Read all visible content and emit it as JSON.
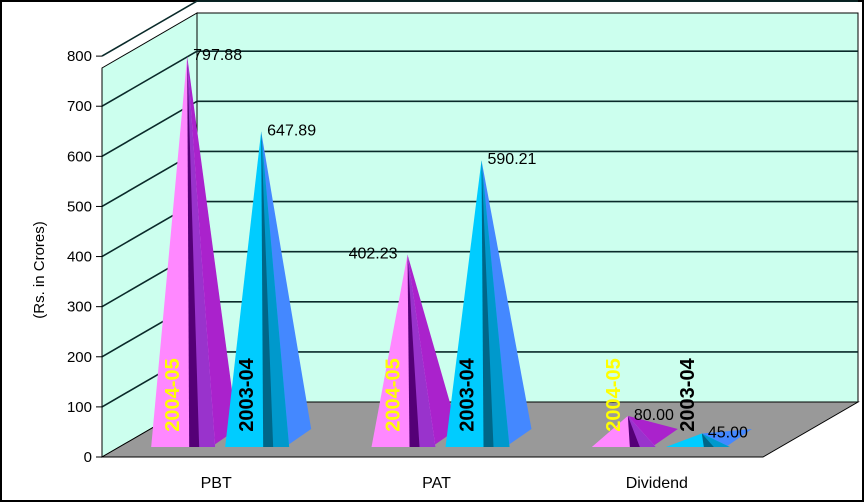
{
  "chart_data": {
    "type": "bar",
    "style": "3d-cone",
    "categories": [
      "PBT",
      "PAT",
      "Dividend"
    ],
    "ylabel": "(Rs. in Crores)",
    "ylim": [
      0,
      900
    ],
    "yticks": [
      "0",
      "100",
      "200",
      "300",
      "400",
      "500",
      "600",
      "700",
      "800"
    ],
    "grid": true,
    "series": [
      {
        "name": "2004-05",
        "values": [
          797.88,
          402.23,
          80.0
        ],
        "value_labels": [
          "797.88",
          "402.23",
          "80.00"
        ],
        "color": "#ff88ff",
        "label_color": "#ffff00"
      },
      {
        "name": "2003-04",
        "values": [
          647.89,
          590.21,
          45.0
        ],
        "value_labels": [
          "647.89",
          "590.21",
          "45.00"
        ],
        "color": "#00ccff",
        "label_color": "#000000"
      }
    ],
    "colors": {
      "wall": "#ccffee",
      "floor": "#999999",
      "grid": "#0a2a2a",
      "border": "#000000"
    }
  }
}
